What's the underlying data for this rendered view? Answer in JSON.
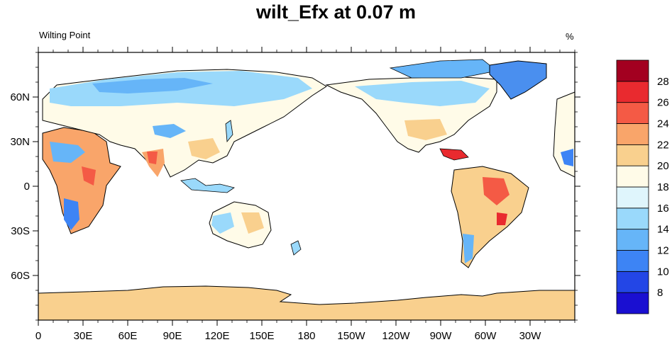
{
  "title": "wilt_Efx at 0.07 m",
  "left_string": "Wilting Point",
  "units": "%",
  "colors": {
    "land_background": "#fffbe8",
    "ocean": "#ffffff",
    "antarctica": "#f9d08e",
    "greenland": "#4a8fef",
    "coastline": "#000000"
  },
  "chart_data": {
    "type": "heatmap",
    "map_projection": "cylindrical-equidistant",
    "center_longitude": 180,
    "x_ticks": [
      "0",
      "30E",
      "60E",
      "90E",
      "120E",
      "150E",
      "180",
      "150W",
      "120W",
      "90W",
      "60W",
      "30W"
    ],
    "y_ticks": [
      "60N",
      "30N",
      "0",
      "30S",
      "60S"
    ],
    "colorbar": {
      "labels": [
        "8",
        "10",
        "12",
        "14",
        "16",
        "18",
        "20",
        "22",
        "24",
        "26",
        "28"
      ],
      "colors": [
        "#1a0fd1",
        "#2346e6",
        "#3d84f5",
        "#66b5f8",
        "#9ad9fb",
        "#dff5fc",
        "#fffbe8",
        "#f9d08e",
        "#f9a56a",
        "#f45a45",
        "#e92a2f",
        "#a30020"
      ]
    }
  }
}
